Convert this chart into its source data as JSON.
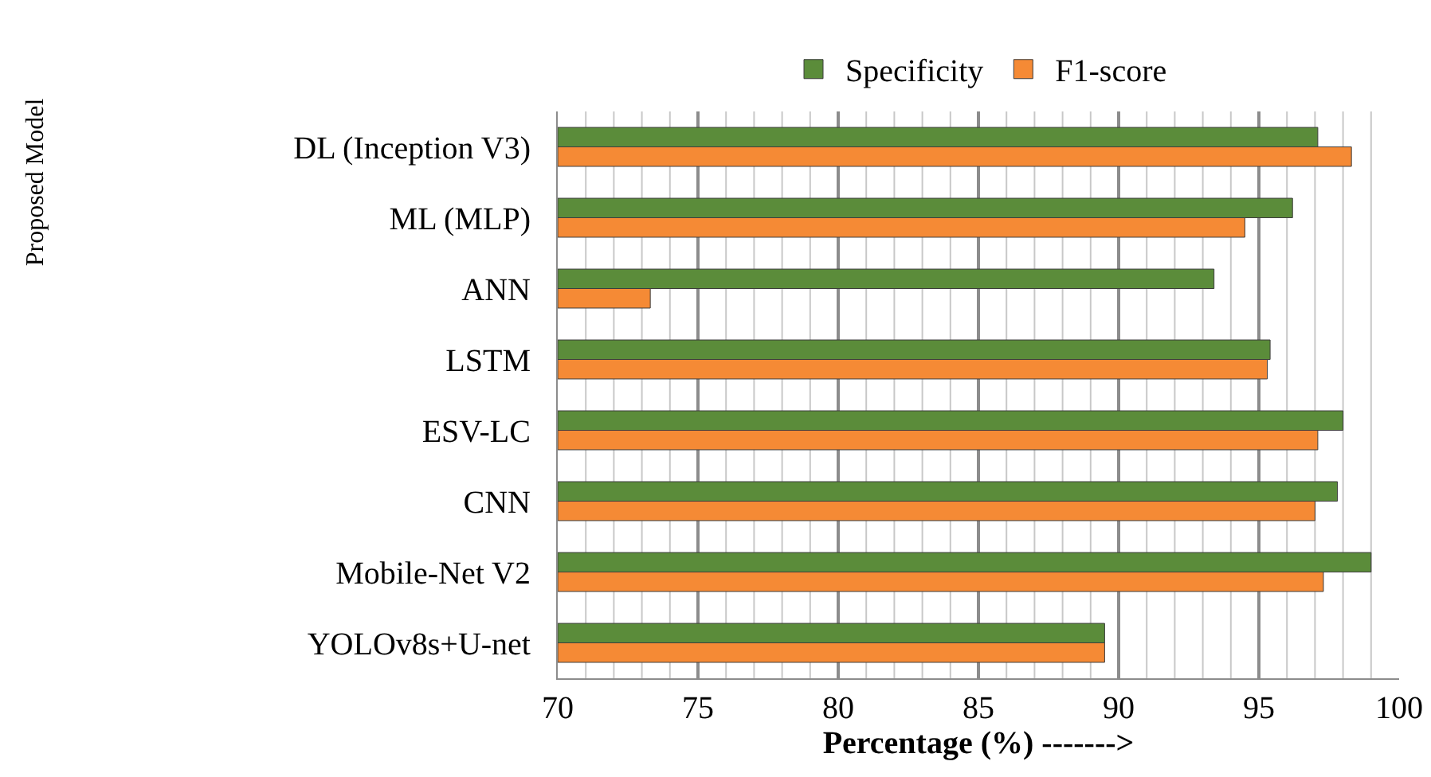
{
  "chart_data": {
    "type": "bar",
    "orientation": "horizontal",
    "xlabel": "Percentage (%) ------->",
    "categories": [
      "DL (Inception V3)",
      "ML (MLP)",
      "ANN",
      "LSTM",
      "ESV-LC",
      "CNN",
      "Mobile-Net V2",
      "YOLOv8s+U-net"
    ],
    "series": [
      {
        "name": "Specificity",
        "color": "#5b8c3a",
        "values": [
          97.1,
          96.2,
          93.4,
          95.4,
          98.0,
          97.8,
          99.0,
          89.5
        ]
      },
      {
        "name": "F1-score",
        "color": "#f58a35",
        "values": [
          98.3,
          94.5,
          73.3,
          95.3,
          97.1,
          97.0,
          97.3,
          89.5
        ]
      }
    ],
    "xlim": [
      70,
      100
    ],
    "xticks": [
      70,
      75,
      80,
      85,
      90,
      95,
      100
    ],
    "grid": "x",
    "legend": "top",
    "annotations": [
      "Proposed Model"
    ]
  }
}
